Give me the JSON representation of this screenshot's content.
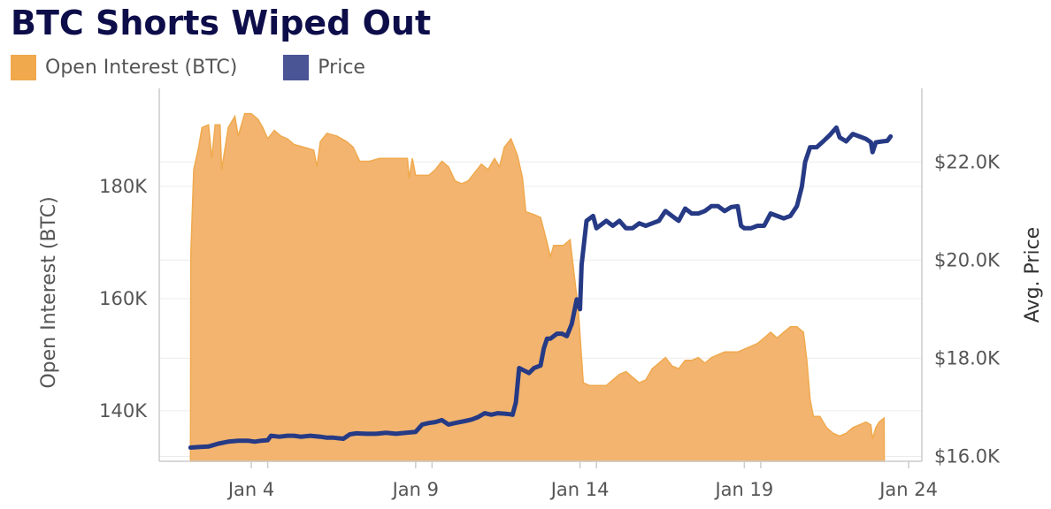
{
  "title": "BTC Shorts Wiped Out",
  "legend": [
    {
      "label": "Open Interest (BTC)",
      "color": "#f0a94d"
    },
    {
      "label": "Price",
      "color": "#4a5596"
    }
  ],
  "colors": {
    "area_fill": "#f2b46f",
    "area_stroke": "#f0a94d",
    "price_line": "#263a85",
    "gridline": "#ececec",
    "axis": "#cccccc"
  },
  "chart_data": {
    "type": "line",
    "title": "BTC Shorts Wiped Out",
    "x_unit": "day of January",
    "x_range": [
      1.2,
      24.4
    ],
    "x_ticks": [
      {
        "x": 4,
        "label": "Jan 4"
      },
      {
        "x": 9,
        "label": "Jan 9"
      },
      {
        "x": 14,
        "label": "Jan 14"
      },
      {
        "x": 19,
        "label": "Jan 19"
      },
      {
        "x": 24,
        "label": "Jan 24"
      }
    ],
    "y_left": {
      "label": "Open Interest (BTC)",
      "range": [
        131000,
        197500
      ],
      "ticks": [
        {
          "value": 140000,
          "label": "140K"
        },
        {
          "value": 160000,
          "label": "160K"
        },
        {
          "value": 180000,
          "label": "180K"
        }
      ]
    },
    "y_right": {
      "label": "Avg. Price",
      "range": [
        15900,
        23500
      ],
      "ticks": [
        {
          "value": 16000,
          "label": "$16.0K"
        },
        {
          "value": 18000,
          "label": "$18.0K"
        },
        {
          "value": 20000,
          "label": "$20.0K"
        },
        {
          "value": 22000,
          "label": "$22.0K"
        }
      ]
    },
    "grid": true,
    "legend_position": "top-left",
    "series": [
      {
        "name": "Open Interest (BTC)",
        "type": "area",
        "axis": "left",
        "points": [
          [
            2.15,
            131000
          ],
          [
            2.16,
            168000
          ],
          [
            2.25,
            183000
          ],
          [
            2.4,
            187000
          ],
          [
            2.5,
            190500
          ],
          [
            2.7,
            191000
          ],
          [
            2.8,
            185000
          ],
          [
            2.9,
            191000
          ],
          [
            3.05,
            191000
          ],
          [
            3.1,
            183000
          ],
          [
            3.3,
            190500
          ],
          [
            3.5,
            192500
          ],
          [
            3.6,
            189000
          ],
          [
            3.8,
            193000
          ],
          [
            4.0,
            193000
          ],
          [
            4.2,
            192000
          ],
          [
            4.35,
            190500
          ],
          [
            4.5,
            188500
          ],
          [
            4.7,
            190000
          ],
          [
            4.9,
            189000
          ],
          [
            5.1,
            188500
          ],
          [
            5.3,
            187500
          ],
          [
            5.6,
            187000
          ],
          [
            5.9,
            186500
          ],
          [
            6.0,
            183500
          ],
          [
            6.1,
            188000
          ],
          [
            6.3,
            189500
          ],
          [
            6.6,
            189000
          ],
          [
            6.9,
            188000
          ],
          [
            7.1,
            187000
          ],
          [
            7.3,
            184500
          ],
          [
            7.6,
            184500
          ],
          [
            7.9,
            185000
          ],
          [
            8.2,
            185000
          ],
          [
            8.5,
            185000
          ],
          [
            8.75,
            185000
          ],
          [
            8.8,
            181500
          ],
          [
            8.9,
            185000
          ],
          [
            9.0,
            182000
          ],
          [
            9.2,
            182000
          ],
          [
            9.4,
            182000
          ],
          [
            9.6,
            183000
          ],
          [
            9.8,
            184500
          ],
          [
            10.0,
            183500
          ],
          [
            10.2,
            181000
          ],
          [
            10.4,
            180500
          ],
          [
            10.6,
            181000
          ],
          [
            10.8,
            182500
          ],
          [
            11.0,
            184000
          ],
          [
            11.2,
            183000
          ],
          [
            11.4,
            185000
          ],
          [
            11.55,
            183500
          ],
          [
            11.7,
            187000
          ],
          [
            11.9,
            188500
          ],
          [
            12.1,
            185500
          ],
          [
            12.25,
            181500
          ],
          [
            12.35,
            175500
          ],
          [
            12.6,
            175000
          ],
          [
            12.8,
            174500
          ],
          [
            13.0,
            170000
          ],
          [
            13.1,
            167500
          ],
          [
            13.2,
            169500
          ],
          [
            13.5,
            169500
          ],
          [
            13.7,
            170500
          ],
          [
            13.95,
            158000
          ],
          [
            14.1,
            145000
          ],
          [
            14.3,
            144500
          ],
          [
            14.6,
            144500
          ],
          [
            14.8,
            144500
          ],
          [
            15.0,
            145500
          ],
          [
            15.2,
            146500
          ],
          [
            15.4,
            147000
          ],
          [
            15.6,
            146000
          ],
          [
            15.8,
            145000
          ],
          [
            16.0,
            145500
          ],
          [
            16.2,
            147500
          ],
          [
            16.4,
            148500
          ],
          [
            16.6,
            149500
          ],
          [
            16.8,
            148000
          ],
          [
            17.0,
            147500
          ],
          [
            17.2,
            149000
          ],
          [
            17.4,
            149000
          ],
          [
            17.6,
            149500
          ],
          [
            17.8,
            148500
          ],
          [
            18.0,
            149500
          ],
          [
            18.2,
            150000
          ],
          [
            18.4,
            150500
          ],
          [
            18.6,
            150500
          ],
          [
            18.8,
            150500
          ],
          [
            19.0,
            151000
          ],
          [
            19.2,
            151500
          ],
          [
            19.4,
            152000
          ],
          [
            19.6,
            153000
          ],
          [
            19.8,
            154000
          ],
          [
            20.0,
            153000
          ],
          [
            20.2,
            154000
          ],
          [
            20.4,
            155000
          ],
          [
            20.6,
            155000
          ],
          [
            20.8,
            154000
          ],
          [
            20.9,
            149000
          ],
          [
            21.0,
            142000
          ],
          [
            21.1,
            139000
          ],
          [
            21.3,
            139000
          ],
          [
            21.5,
            137000
          ],
          [
            21.7,
            136000
          ],
          [
            21.9,
            135500
          ],
          [
            22.1,
            136000
          ],
          [
            22.3,
            137000
          ],
          [
            22.5,
            137500
          ],
          [
            22.7,
            138000
          ],
          [
            22.85,
            137500
          ],
          [
            22.9,
            135000
          ],
          [
            23.0,
            137000
          ],
          [
            23.1,
            138000
          ],
          [
            23.25,
            138700
          ],
          [
            23.26,
            131000
          ]
        ]
      },
      {
        "name": "Price",
        "type": "line",
        "axis": "right",
        "points": [
          [
            2.15,
            16180
          ],
          [
            2.4,
            16190
          ],
          [
            2.7,
            16200
          ],
          [
            3.0,
            16260
          ],
          [
            3.3,
            16300
          ],
          [
            3.6,
            16320
          ],
          [
            3.9,
            16320
          ],
          [
            4.1,
            16300
          ],
          [
            4.3,
            16320
          ],
          [
            4.5,
            16330
          ],
          [
            4.6,
            16420
          ],
          [
            4.85,
            16400
          ],
          [
            5.1,
            16420
          ],
          [
            5.3,
            16420
          ],
          [
            5.5,
            16400
          ],
          [
            5.8,
            16420
          ],
          [
            6.1,
            16400
          ],
          [
            6.3,
            16380
          ],
          [
            6.5,
            16380
          ],
          [
            6.8,
            16360
          ],
          [
            7.0,
            16450
          ],
          [
            7.2,
            16470
          ],
          [
            7.5,
            16460
          ],
          [
            7.8,
            16460
          ],
          [
            8.1,
            16480
          ],
          [
            8.4,
            16460
          ],
          [
            8.7,
            16480
          ],
          [
            9.0,
            16500
          ],
          [
            9.2,
            16650
          ],
          [
            9.4,
            16680
          ],
          [
            9.6,
            16700
          ],
          [
            9.8,
            16740
          ],
          [
            10.0,
            16650
          ],
          [
            10.2,
            16680
          ],
          [
            10.5,
            16720
          ],
          [
            10.7,
            16750
          ],
          [
            10.9,
            16800
          ],
          [
            11.1,
            16880
          ],
          [
            11.3,
            16850
          ],
          [
            11.5,
            16880
          ],
          [
            11.7,
            16870
          ],
          [
            11.85,
            16860
          ],
          [
            11.95,
            16850
          ],
          [
            12.05,
            17100
          ],
          [
            12.15,
            17800
          ],
          [
            12.3,
            17750
          ],
          [
            12.45,
            17700
          ],
          [
            12.6,
            17800
          ],
          [
            12.8,
            17850
          ],
          [
            12.9,
            18200
          ],
          [
            13.0,
            18400
          ],
          [
            13.1,
            18400
          ],
          [
            13.3,
            18500
          ],
          [
            13.45,
            18500
          ],
          [
            13.6,
            18450
          ],
          [
            13.75,
            18700
          ],
          [
            13.9,
            19200
          ],
          [
            14.0,
            19000
          ],
          [
            14.05,
            19900
          ],
          [
            14.2,
            20800
          ],
          [
            14.4,
            20900
          ],
          [
            14.5,
            20650
          ],
          [
            14.6,
            20700
          ],
          [
            14.8,
            20800
          ],
          [
            15.0,
            20700
          ],
          [
            15.2,
            20800
          ],
          [
            15.4,
            20650
          ],
          [
            15.6,
            20650
          ],
          [
            15.8,
            20750
          ],
          [
            16.0,
            20700
          ],
          [
            16.2,
            20750
          ],
          [
            16.4,
            20800
          ],
          [
            16.6,
            21000
          ],
          [
            16.8,
            20900
          ],
          [
            17.0,
            20800
          ],
          [
            17.2,
            21050
          ],
          [
            17.4,
            20950
          ],
          [
            17.6,
            20950
          ],
          [
            17.8,
            21000
          ],
          [
            18.0,
            21100
          ],
          [
            18.2,
            21100
          ],
          [
            18.4,
            21000
          ],
          [
            18.6,
            21080
          ],
          [
            18.8,
            21100
          ],
          [
            18.9,
            20700
          ],
          [
            19.0,
            20650
          ],
          [
            19.2,
            20650
          ],
          [
            19.4,
            20700
          ],
          [
            19.6,
            20700
          ],
          [
            19.8,
            20950
          ],
          [
            20.0,
            20900
          ],
          [
            20.2,
            20850
          ],
          [
            20.4,
            20900
          ],
          [
            20.6,
            21100
          ],
          [
            20.75,
            21500
          ],
          [
            20.85,
            22000
          ],
          [
            21.0,
            22300
          ],
          [
            21.2,
            22300
          ],
          [
            21.4,
            22420
          ],
          [
            21.6,
            22550
          ],
          [
            21.8,
            22700
          ],
          [
            21.9,
            22500
          ],
          [
            22.1,
            22420
          ],
          [
            22.3,
            22570
          ],
          [
            22.5,
            22520
          ],
          [
            22.7,
            22470
          ],
          [
            22.85,
            22400
          ],
          [
            22.9,
            22200
          ],
          [
            23.0,
            22400
          ],
          [
            23.2,
            22420
          ],
          [
            23.35,
            22430
          ],
          [
            23.45,
            22520
          ]
        ]
      }
    ]
  }
}
